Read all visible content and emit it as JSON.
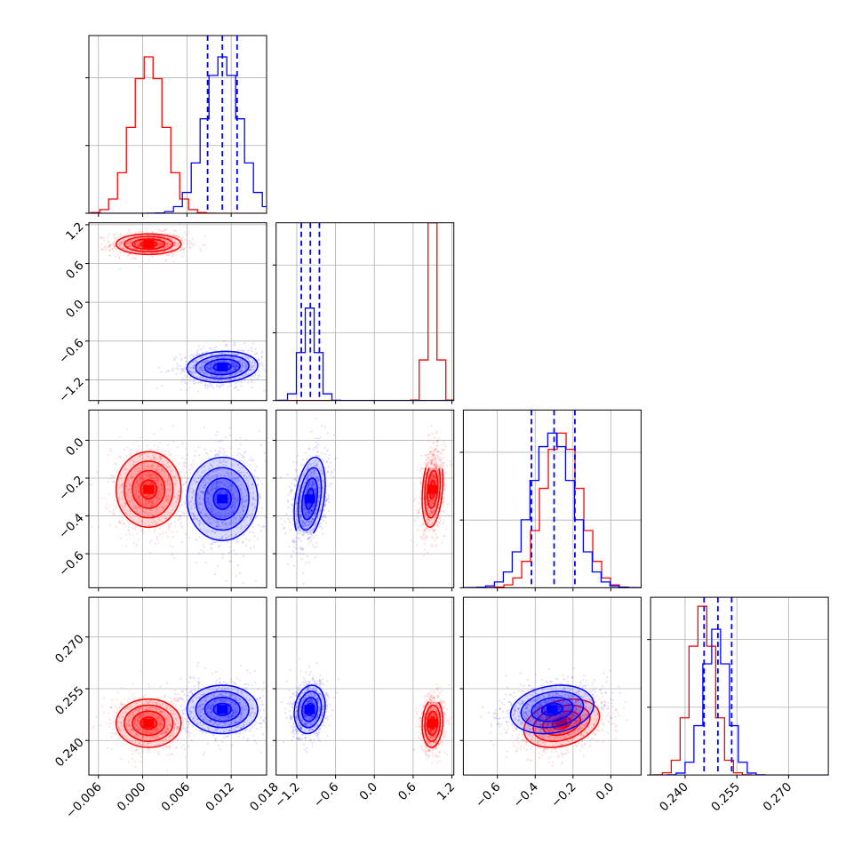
{
  "chart_data": {
    "type": "corner",
    "parameters": [
      {
        "ticks": [
          -0.006,
          0.0,
          0.006,
          0.012,
          0.018
        ],
        "tick_labels": [
          "−0.006",
          "0.000",
          "0.006",
          "0.012",
          "0.018"
        ],
        "range": [
          -0.0073,
          0.0168
        ]
      },
      {
        "ticks": [
          -1.2,
          -0.6,
          0.0,
          0.6,
          1.2
        ],
        "tick_labels": [
          "−1.2",
          "−0.6",
          "0.0",
          "0.6",
          "1.2"
        ],
        "range": [
          -1.52,
          1.23
        ]
      },
      {
        "ticks": [
          -0.6,
          -0.4,
          -0.2,
          0.0
        ],
        "tick_labels": [
          "−0.6",
          "−0.4",
          "−0.2",
          "0.0"
        ],
        "range": [
          -0.78,
          0.16
        ]
      },
      {
        "ticks": [
          0.24,
          0.255,
          0.27
        ],
        "tick_labels": [
          "0.240",
          "0.255",
          "0.270"
        ],
        "range": [
          0.23,
          0.2815
        ]
      }
    ],
    "series": [
      {
        "name": "red",
        "color": "#ff0000",
        "means": [
          0.0008,
          0.9,
          -0.26,
          0.245
        ],
        "stds": [
          0.0022,
          0.08,
          0.1,
          0.0035
        ],
        "hist_peaks": [
          0.88,
          1.0,
          0.87,
          0.95
        ]
      },
      {
        "name": "blue",
        "color": "#0000ff",
        "means": [
          0.0108,
          -1.0,
          -0.31,
          0.249
        ],
        "stds": [
          0.0024,
          0.12,
          0.11,
          0.0035
        ],
        "hist_peaks": [
          0.88,
          0.52,
          0.87,
          0.82
        ],
        "quantiles": [
          [
            0.0088,
            0.0108,
            0.0128
          ],
          [
            -1.13,
            -0.99,
            -0.85
          ],
          [
            -0.42,
            -0.3,
            -0.19
          ],
          [
            0.2455,
            0.2495,
            0.2535
          ]
        ]
      }
    ],
    "correlations": {
      "0-1": {
        "red": 0.0,
        "blue": 0.1
      },
      "0-2": {
        "red": 0.0,
        "blue": 0.0
      },
      "1-2": {
        "red": 0.25,
        "blue": 0.35
      },
      "0-3": {
        "red": 0.0,
        "blue": 0.0
      },
      "1-3": {
        "red": 0.1,
        "blue": 0.15
      },
      "2-3": {
        "red": 0.3,
        "blue": 0.2
      }
    }
  }
}
